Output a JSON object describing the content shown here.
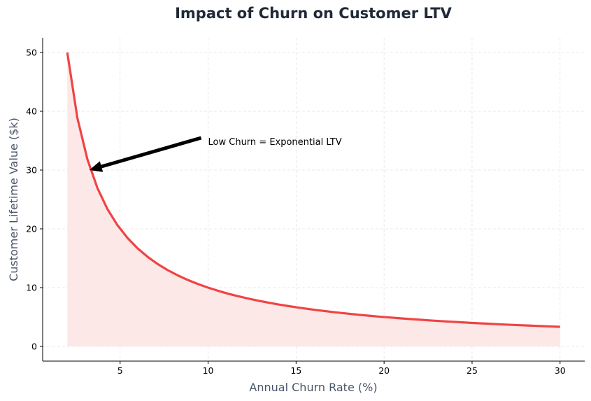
{
  "chart_data": {
    "type": "area",
    "title": "Impact of Churn on Customer LTV",
    "xlabel": "Annual Churn Rate (%)",
    "ylabel": "Customer Lifetime Value ($k)",
    "xlim": [
      0.6,
      31.4
    ],
    "ylim": [
      -2.5,
      52.5
    ],
    "xticks": [
      5,
      10,
      15,
      20,
      25,
      30
    ],
    "yticks": [
      0,
      10,
      20,
      30,
      40,
      50
    ],
    "grid": true,
    "colors": {
      "line": "#ef4444",
      "fill": "#fde8e8",
      "title": "#1f2937",
      "axis_label": "#4a5568"
    },
    "series": [
      {
        "x": [
          2.0,
          2.571,
          3.143,
          3.714,
          4.286,
          4.857,
          5.429,
          6.0,
          6.571,
          7.143,
          7.714,
          8.286,
          8.857,
          9.429,
          10.0,
          10.571,
          11.143,
          11.714,
          12.286,
          12.857,
          13.429,
          14.0,
          14.571,
          15.143,
          15.714,
          16.286,
          16.857,
          17.429,
          18.0,
          18.571,
          19.143,
          19.714,
          20.286,
          20.857,
          21.429,
          22.0,
          22.571,
          23.143,
          23.714,
          24.286,
          24.857,
          25.429,
          26.0,
          26.571,
          27.143,
          27.714,
          28.286,
          28.857,
          29.429,
          30.0
        ],
        "y": [
          50.0,
          38.89,
          31.82,
          26.92,
          23.33,
          20.59,
          18.42,
          16.67,
          15.22,
          14.0,
          12.96,
          12.07,
          11.29,
          10.61,
          10.0,
          9.46,
          8.97,
          8.54,
          8.14,
          7.78,
          7.45,
          7.14,
          6.86,
          6.6,
          6.36,
          6.14,
          5.93,
          5.74,
          5.56,
          5.38,
          5.22,
          5.07,
          4.93,
          4.79,
          4.67,
          4.55,
          4.43,
          4.32,
          4.22,
          4.12,
          4.02,
          3.93,
          3.85,
          3.76,
          3.68,
          3.61,
          3.54,
          3.47,
          3.4,
          3.33
        ]
      }
    ],
    "annotation": {
      "text": "Low Churn = Exponential LTV",
      "xy": [
        3.33,
        30
      ],
      "xytext": [
        10,
        35
      ]
    }
  }
}
